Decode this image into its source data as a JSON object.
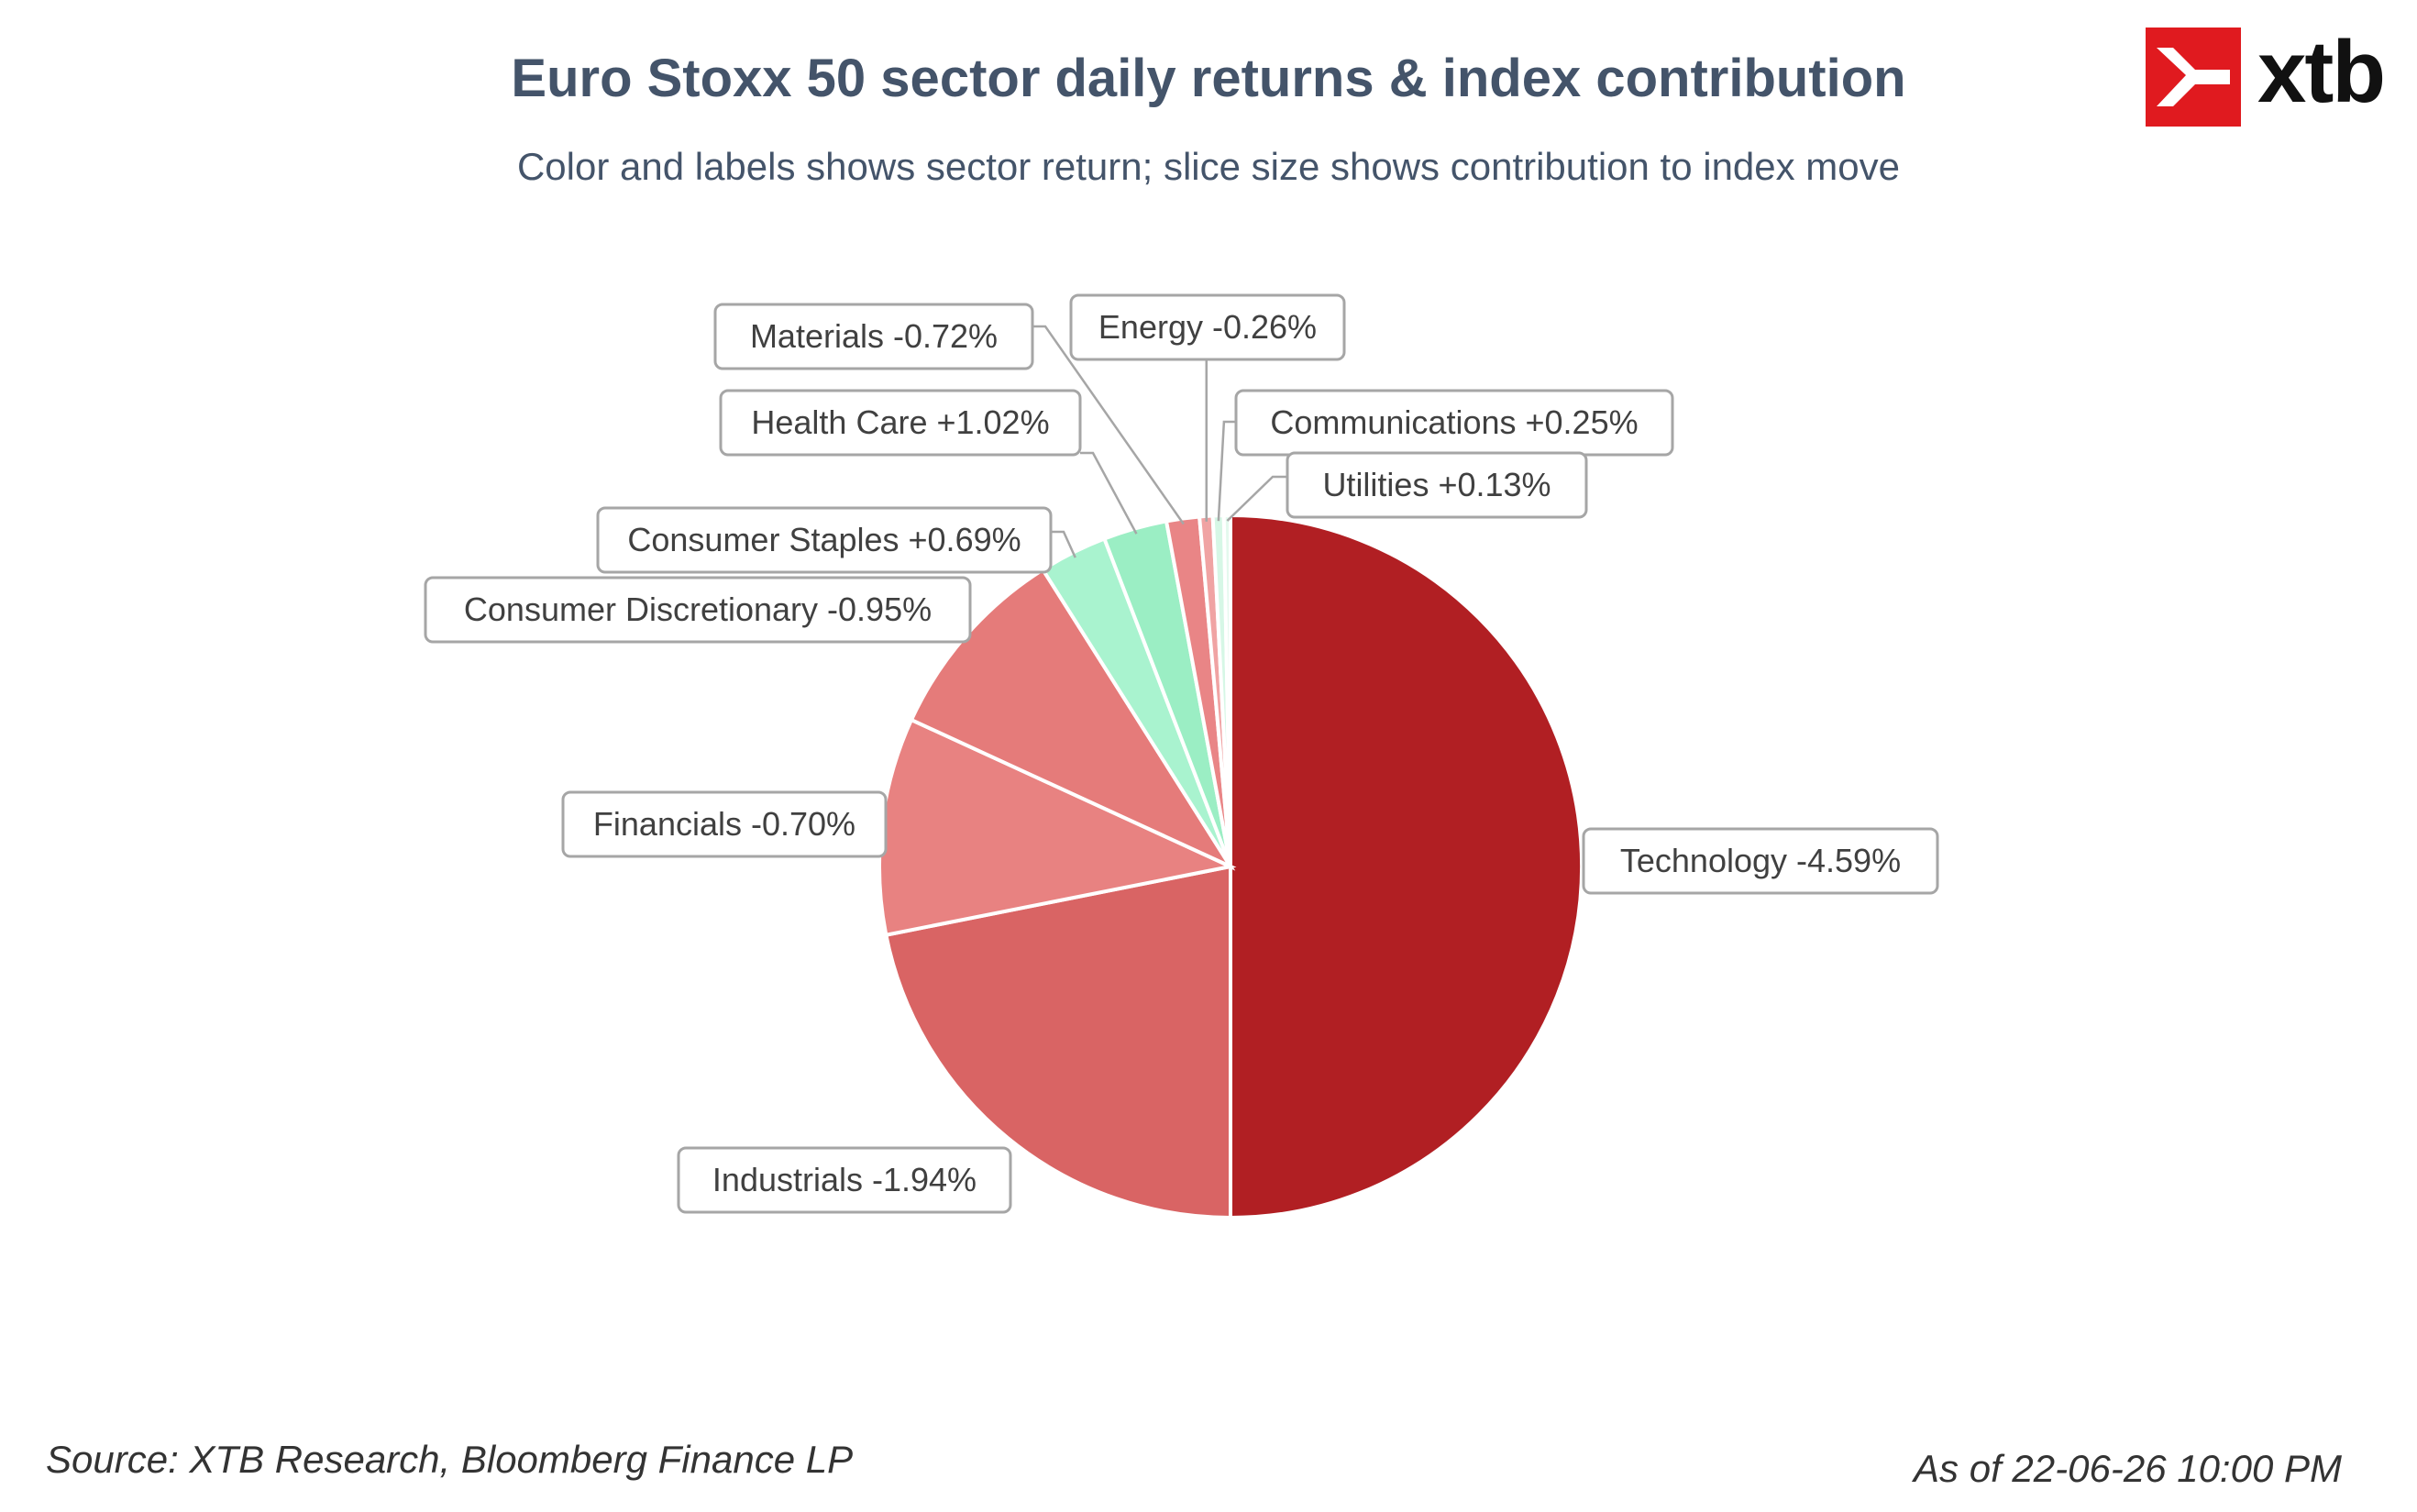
{
  "header": {
    "title": "Euro Stoxx 50 sector daily returns & index contribution",
    "subtitle": "Color and labels shows sector return; slice size shows contribution to index move"
  },
  "logo": {
    "text": "xtb",
    "icon": "xtb-x-mark-icon",
    "color": "#e01a1f"
  },
  "footer": {
    "source": "Source: XTB Research, Bloomberg Finance LP",
    "as_of": "As of 22-06-26 10:00 PM"
  },
  "chart_data": {
    "type": "pie",
    "start_angle_deg": 0,
    "direction": "clockwise",
    "slices": [
      {
        "label": "Technology -4.59%",
        "sector": "Technology",
        "return_pct": -4.59,
        "value": 49.6,
        "color": "#b11f23"
      },
      {
        "label": "Industrials -1.94%",
        "sector": "Industrials",
        "return_pct": -1.94,
        "value": 21.7,
        "color": "#d96464"
      },
      {
        "label": "Financials -0.70%",
        "sector": "Financials",
        "return_pct": -0.7,
        "value": 9.9,
        "color": "#e88281"
      },
      {
        "label": "Consumer Discretionary -0.95%",
        "sector": "Consumer Discretionary",
        "return_pct": -0.95,
        "value": 9.1,
        "color": "#e57b7a"
      },
      {
        "label": "Consumer Staples +0.69%",
        "sector": "Consumer Staples",
        "return_pct": 0.69,
        "value": 3.1,
        "color": "#a9f3cf"
      },
      {
        "label": "Health Care +1.02%",
        "sector": "Health Care",
        "return_pct": 1.02,
        "value": 2.9,
        "color": "#9beec4"
      },
      {
        "label": "Materials -0.72%",
        "sector": "Materials",
        "return_pct": -0.72,
        "value": 1.5,
        "color": "#e98586"
      },
      {
        "label": "Energy -0.26%",
        "sector": "Energy",
        "return_pct": -0.26,
        "value": 0.6,
        "color": "#f0a3a3"
      },
      {
        "label": "Communications +0.25%",
        "sector": "Communications",
        "return_pct": 0.25,
        "value": 0.5,
        "color": "#d6f7e6"
      },
      {
        "label": "Utilities +0.13%",
        "sector": "Utilities",
        "return_pct": 0.13,
        "value": 0.3,
        "color": "#e4f9ee"
      }
    ]
  }
}
